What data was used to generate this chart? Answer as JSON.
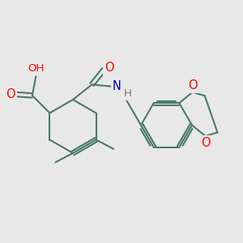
{
  "bg_color": "#e8e8e8",
  "bond_color": "#4a7a6a",
  "bond_width": 1.5,
  "atom_colors": {
    "O": "#ff0000",
    "N": "#0000cc",
    "H": "#777777",
    "C": "#4a7a6a"
  },
  "font_size": 9.5
}
